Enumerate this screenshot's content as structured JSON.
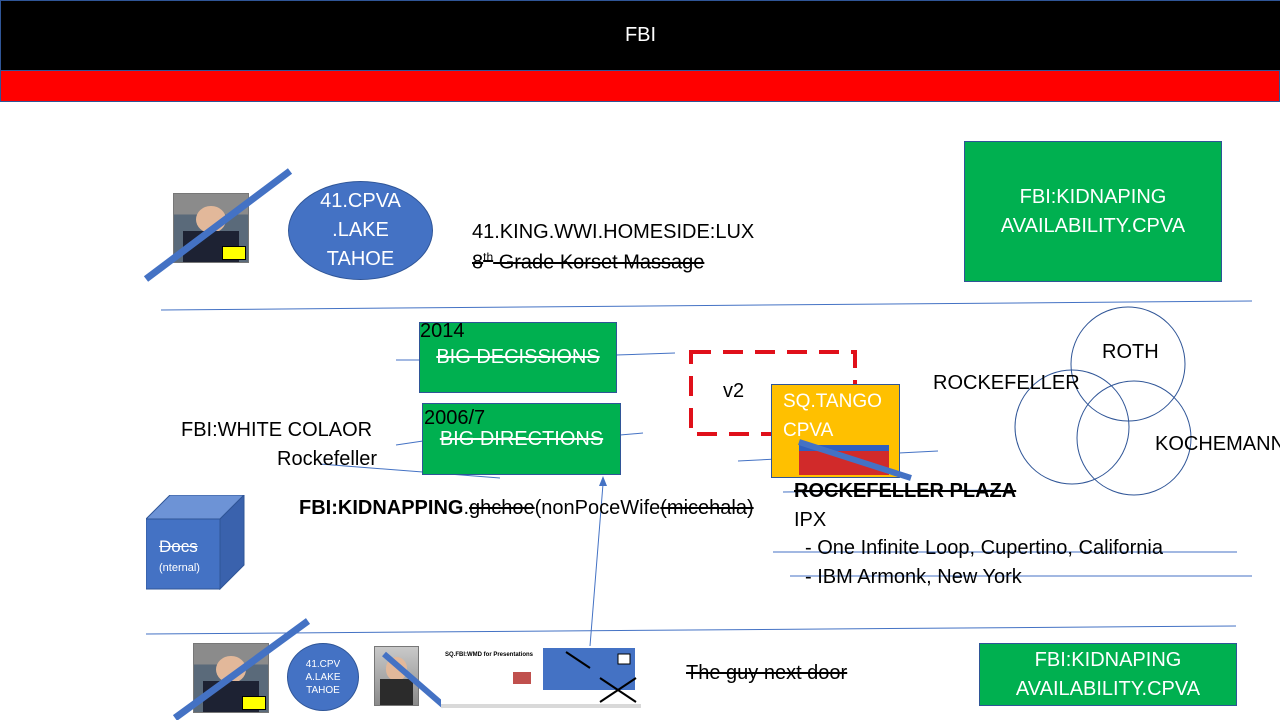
{
  "header": {
    "title": "FBI"
  },
  "top": {
    "ellipse_lines": [
      "41.CPVA",
      ".LAKE",
      "TAHOE"
    ],
    "line1": "41.KING.WWI.HOMESIDE:LUX",
    "line2_sup_num": "8",
    "line2_sup": "th",
    "line2_rest": " Grade Korset Massage",
    "green_box_lines": [
      "FBI:KIDNAPING",
      "AVAILABILITY.CPVA"
    ]
  },
  "middle": {
    "box1_year": "2014",
    "box1_label": "BIG DECISSIONS",
    "box2_year": "2006/7",
    "box2_label": "BIG DIRECTIONS",
    "white_colaor": "FBI:WHITE COLAOR",
    "rockefeller_small": "Rockefeller",
    "kidnapping_bold": "FBI:KIDNAPPING",
    "kidnapping_dot": ".",
    "kidnapping_strike1": "ghchoe",
    "kidnapping_paren": "(nonPoceWife",
    "kidnapping_strike2": "(micehala)",
    "v2": "v2",
    "tango_lines": [
      "SQ.TANGO",
      "CPVA"
    ],
    "plaza": "ROCKEFELLER PLAZA",
    "ipx": "IPX",
    "addr1": "- One Infinite Loop, Cupertino, California",
    "addr2": "- IBM Armonk, New York",
    "venn_rockefeller": "ROCKEFELLER",
    "venn_roth": "ROTH",
    "venn_kochemann": "KOCHEMANN",
    "docs_title": "Docs",
    "docs_sub": "(nternal)"
  },
  "bottom": {
    "ellipse_lines": [
      "41.CPV",
      "A.LAKE",
      "TAHOE"
    ],
    "slide_title": "SQ.FBI:WMD for Presentations",
    "guy": "The guy next door",
    "green_box_lines": [
      "FBI:KIDNAPING",
      "AVAILABILITY.CPVA"
    ]
  },
  "colors": {
    "header": "#000000",
    "redbar": "#ff0000",
    "green": "#00b050",
    "blue": "#4472c4",
    "orange": "#ffc000",
    "dashed": "#e0101a"
  }
}
